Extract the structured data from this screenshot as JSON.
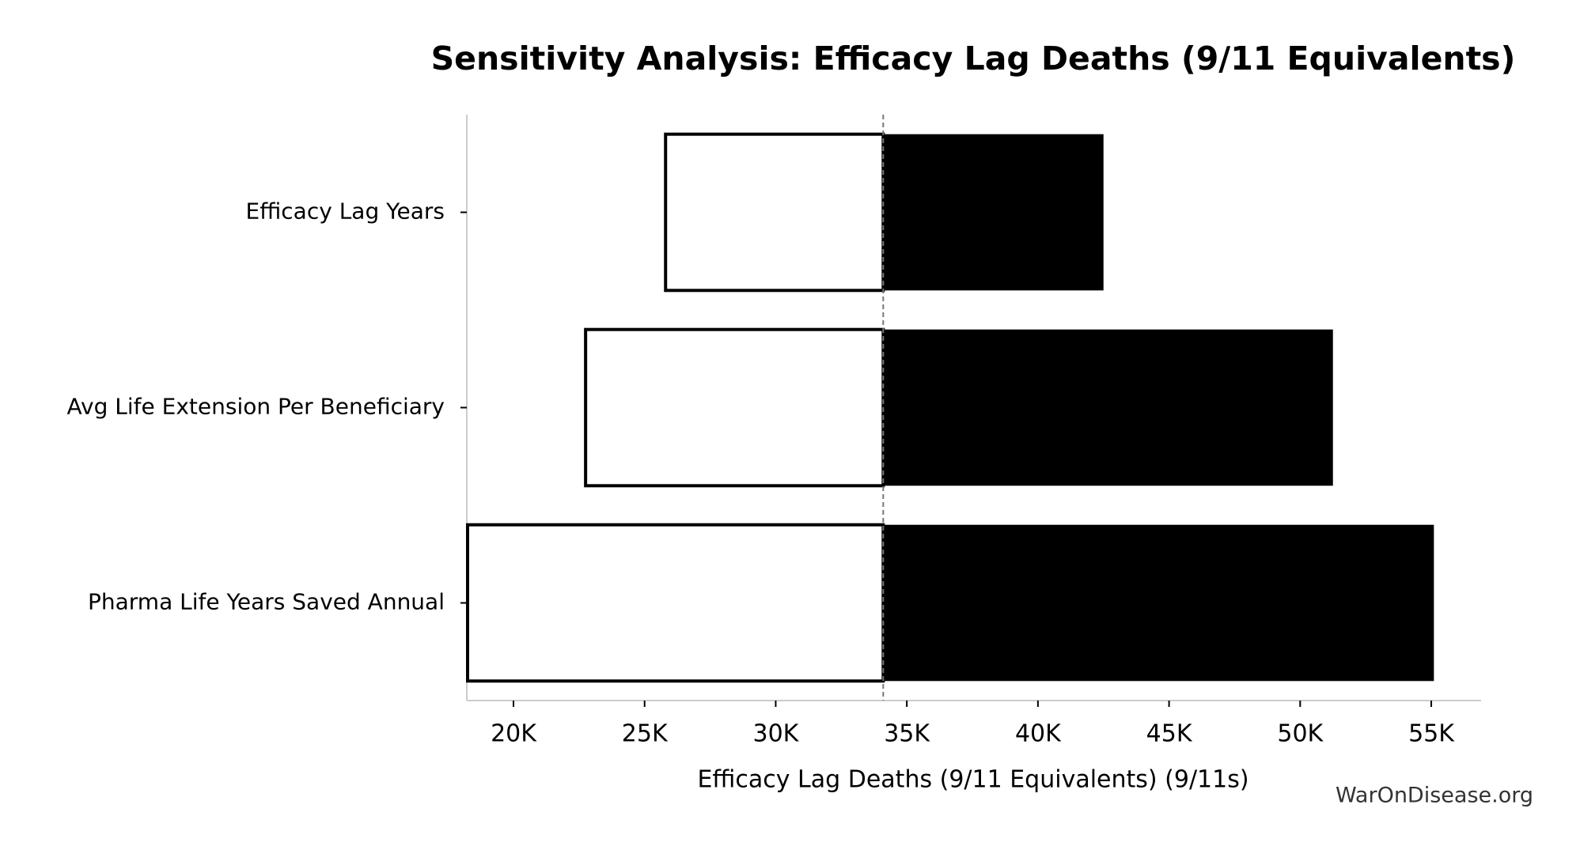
{
  "chart_data": {
    "type": "tornado",
    "title": "Sensitivity Analysis: Efficacy Lag Deaths (9/11 Equivalents)",
    "x_label": "Efficacy Lag Deaths (9/11 Equivalents) (9/11s)",
    "watermark": "WarOnDisease.org",
    "categories": [
      "Efficacy Lag Years",
      "Avg Life Extension Per Beneficiary",
      "Pharma Life Years Saved Annual"
    ],
    "baseline": 34100,
    "low": [
      25800,
      22750,
      18250
    ],
    "high": [
      42500,
      51250,
      55100
    ],
    "low_color": "#ffffff",
    "high_color": "#000000",
    "xlim": [
      18220,
      56900
    ],
    "xticks": [
      {
        "value": 20000,
        "label": "20K"
      },
      {
        "value": 25000,
        "label": "25K"
      },
      {
        "value": 30000,
        "label": "30K"
      },
      {
        "value": 35000,
        "label": "35K"
      },
      {
        "value": 40000,
        "label": "40K"
      },
      {
        "value": 45000,
        "label": "45K"
      },
      {
        "value": 50000,
        "label": "50K"
      },
      {
        "value": 55000,
        "label": "55K"
      }
    ]
  }
}
